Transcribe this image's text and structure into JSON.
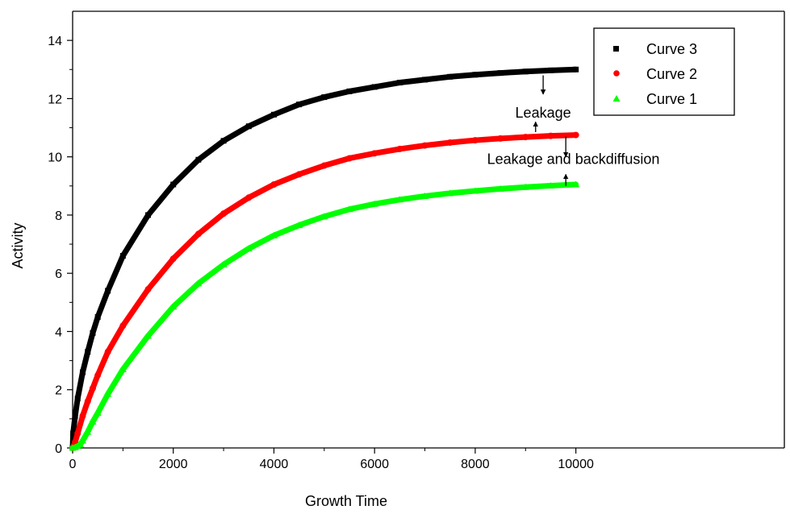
{
  "chart_data": {
    "type": "scatter",
    "title": "",
    "xlabel": "Growth Time",
    "ylabel": "Activity",
    "xlim": [
      0,
      11000
    ],
    "ylim": [
      0,
      15
    ],
    "xticks": [
      0,
      2000,
      4000,
      6000,
      8000,
      10000
    ],
    "xtick_labels": [
      "0",
      "2000",
      "4000",
      "6000",
      "8000",
      "10000"
    ],
    "yticks": [
      0,
      2,
      4,
      6,
      8,
      10,
      12,
      14
    ],
    "ytick_labels": [
      "0",
      "2",
      "4",
      "6",
      "8",
      "10",
      "12",
      "14"
    ],
    "grid": false,
    "legend": {
      "position": "top-right"
    },
    "series": [
      {
        "name": "Curve 3",
        "color": "#000000",
        "marker": "square",
        "x": [
          0,
          10,
          50,
          100,
          200,
          300,
          400,
          500,
          700,
          1000,
          1500,
          2000,
          2500,
          3000,
          3500,
          4000,
          4500,
          5000,
          5500,
          6000,
          6500,
          7000,
          7500,
          8000,
          8500,
          9000,
          9500,
          10000
        ],
        "y": [
          0.0,
          0.5,
          1.1,
          1.7,
          2.6,
          3.3,
          3.95,
          4.5,
          5.4,
          6.6,
          8.0,
          9.05,
          9.9,
          10.55,
          11.05,
          11.45,
          11.8,
          12.05,
          12.25,
          12.4,
          12.55,
          12.65,
          12.75,
          12.82,
          12.88,
          12.93,
          12.97,
          13.0
        ]
      },
      {
        "name": "Curve 2",
        "color": "#ff0000",
        "marker": "circle",
        "x": [
          0,
          50,
          100,
          200,
          300,
          400,
          500,
          700,
          1000,
          1500,
          2000,
          2500,
          3000,
          3500,
          4000,
          4500,
          5000,
          5500,
          6000,
          6500,
          7000,
          7500,
          8000,
          8500,
          9000,
          9500,
          10000
        ],
        "y": [
          0.0,
          0.2,
          0.5,
          1.1,
          1.6,
          2.05,
          2.5,
          3.3,
          4.2,
          5.45,
          6.5,
          7.35,
          8.05,
          8.6,
          9.05,
          9.4,
          9.7,
          9.95,
          10.12,
          10.27,
          10.39,
          10.49,
          10.57,
          10.63,
          10.68,
          10.72,
          10.75
        ]
      },
      {
        "name": "Curve 1",
        "color": "#00ff00",
        "marker": "triangle",
        "x": [
          0,
          50,
          100,
          150,
          200,
          300,
          400,
          500,
          700,
          1000,
          1500,
          2000,
          2500,
          3000,
          3500,
          4000,
          4500,
          5000,
          5500,
          6000,
          6500,
          7000,
          7500,
          8000,
          8500,
          9000,
          9500,
          10000
        ],
        "y": [
          0.0,
          0.02,
          0.06,
          0.12,
          0.25,
          0.55,
          0.9,
          1.2,
          1.85,
          2.7,
          3.85,
          4.85,
          5.65,
          6.3,
          6.85,
          7.3,
          7.65,
          7.95,
          8.2,
          8.38,
          8.53,
          8.65,
          8.75,
          8.83,
          8.9,
          8.96,
          9.01,
          9.05
        ]
      }
    ],
    "annotations": [
      {
        "text": "Leakage",
        "anchor": [
          9350,
          11.35
        ],
        "arrows": [
          {
            "from": [
              9350,
              12.8
            ],
            "to": [
              9350,
              12.15
            ]
          },
          {
            "from": [
              9200,
              10.85
            ],
            "to": [
              9200,
              11.2
            ]
          }
        ]
      },
      {
        "text": "Leakage and backdiffusion",
        "anchor": [
          9950,
          9.75
        ],
        "arrows": [
          {
            "from": [
              9800,
              10.7
            ],
            "to": [
              9800,
              10.0
            ]
          },
          {
            "from": [
              9800,
              9.0
            ],
            "to": [
              9800,
              9.4
            ]
          }
        ]
      }
    ]
  }
}
